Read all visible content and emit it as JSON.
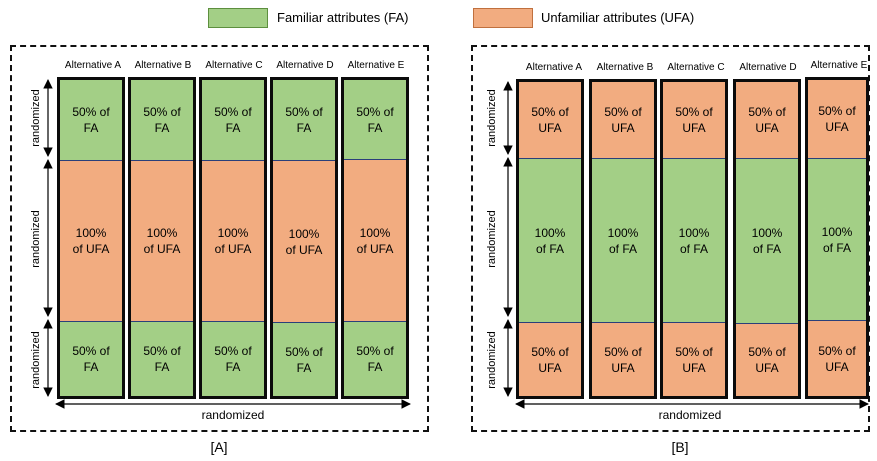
{
  "legend": {
    "fa_label": "Familiar attributes (FA)",
    "ufa_label": "Unfamiliar attributes (UFA)",
    "fa_color": "#a3cf86",
    "ufa_color": "#f2ac80"
  },
  "axis_label": "randomized",
  "alternatives": [
    "Alternative A",
    "Alternative B",
    "Alternative C",
    "Alternative D",
    "Alternative E"
  ],
  "panel_a": {
    "label": "[A]",
    "top": "50% of\nFA",
    "middle": "100%\nof UFA",
    "bottom": "50% of\nFA"
  },
  "panel_b": {
    "label": "[B]",
    "top": "50% of\nUFA",
    "middle": "100%\nof FA",
    "bottom": "50% of\nUFA"
  }
}
